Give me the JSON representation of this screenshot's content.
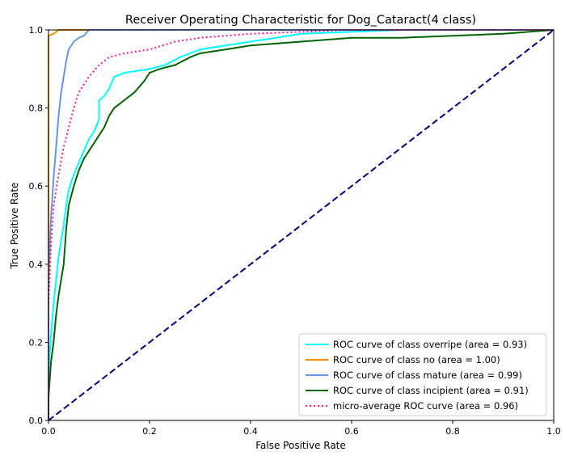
{
  "chart_data": {
    "type": "line",
    "title": "Receiver Operating Characteristic for Dog_Cataract(4 class)",
    "xlabel": "False Positive Rate",
    "ylabel": "True Positive Rate",
    "xlim": [
      0.0,
      1.0
    ],
    "ylim": [
      0.0,
      1.0
    ],
    "xticks": [
      "0.0",
      "0.2",
      "0.4",
      "0.6",
      "0.8",
      "1.0"
    ],
    "yticks": [
      "0.0",
      "0.2",
      "0.4",
      "0.6",
      "0.8",
      "1.0"
    ],
    "grid": false,
    "legend_position": "lower-right",
    "series": [
      {
        "name": "ROC curve of class overripe (area = 0.93)",
        "color": "#00ffff",
        "style": "solid",
        "points": [
          [
            0.0,
            0.0
          ],
          [
            0.0,
            0.12
          ],
          [
            0.005,
            0.22
          ],
          [
            0.01,
            0.3
          ],
          [
            0.015,
            0.36
          ],
          [
            0.02,
            0.42
          ],
          [
            0.025,
            0.46
          ],
          [
            0.03,
            0.5
          ],
          [
            0.035,
            0.55
          ],
          [
            0.04,
            0.59
          ],
          [
            0.05,
            0.63
          ],
          [
            0.06,
            0.66
          ],
          [
            0.07,
            0.69
          ],
          [
            0.08,
            0.72
          ],
          [
            0.09,
            0.74
          ],
          [
            0.1,
            0.77
          ],
          [
            0.1,
            0.82
          ],
          [
            0.11,
            0.83
          ],
          [
            0.12,
            0.85
          ],
          [
            0.13,
            0.88
          ],
          [
            0.15,
            0.89
          ],
          [
            0.2,
            0.9
          ],
          [
            0.23,
            0.91
          ],
          [
            0.26,
            0.93
          ],
          [
            0.3,
            0.95
          ],
          [
            0.35,
            0.96
          ],
          [
            0.4,
            0.97
          ],
          [
            0.45,
            0.98
          ],
          [
            0.5,
            0.99
          ],
          [
            0.6,
            0.995
          ],
          [
            0.7,
            1.0
          ],
          [
            1.0,
            1.0
          ]
        ]
      },
      {
        "name": "ROC curve of class no (area = 1.00)",
        "color": "#ff8c00",
        "style": "solid",
        "points": [
          [
            0.0,
            0.0
          ],
          [
            0.0,
            0.985
          ],
          [
            0.01,
            0.99
          ],
          [
            0.02,
            1.0
          ],
          [
            1.0,
            1.0
          ]
        ]
      },
      {
        "name": "ROC curve of class mature (area = 0.99)",
        "color": "#6495ed",
        "style": "solid",
        "points": [
          [
            0.0,
            0.0
          ],
          [
            0.0,
            0.35
          ],
          [
            0.005,
            0.52
          ],
          [
            0.01,
            0.62
          ],
          [
            0.015,
            0.7
          ],
          [
            0.02,
            0.78
          ],
          [
            0.025,
            0.84
          ],
          [
            0.03,
            0.88
          ],
          [
            0.035,
            0.92
          ],
          [
            0.04,
            0.95
          ],
          [
            0.05,
            0.97
          ],
          [
            0.06,
            0.98
          ],
          [
            0.07,
            0.985
          ],
          [
            0.08,
            1.0
          ],
          [
            0.13,
            1.0
          ],
          [
            1.0,
            1.0
          ]
        ]
      },
      {
        "name": "ROC curve of class incipient (area = 0.91)",
        "color": "#006400",
        "style": "solid",
        "points": [
          [
            0.0,
            0.0
          ],
          [
            0.0,
            0.06
          ],
          [
            0.005,
            0.15
          ],
          [
            0.01,
            0.2
          ],
          [
            0.015,
            0.27
          ],
          [
            0.02,
            0.32
          ],
          [
            0.025,
            0.36
          ],
          [
            0.03,
            0.4
          ],
          [
            0.035,
            0.49
          ],
          [
            0.04,
            0.55
          ],
          [
            0.05,
            0.6
          ],
          [
            0.06,
            0.64
          ],
          [
            0.07,
            0.67
          ],
          [
            0.08,
            0.69
          ],
          [
            0.09,
            0.71
          ],
          [
            0.1,
            0.73
          ],
          [
            0.11,
            0.75
          ],
          [
            0.12,
            0.78
          ],
          [
            0.13,
            0.8
          ],
          [
            0.15,
            0.82
          ],
          [
            0.17,
            0.84
          ],
          [
            0.19,
            0.87
          ],
          [
            0.2,
            0.89
          ],
          [
            0.22,
            0.9
          ],
          [
            0.25,
            0.91
          ],
          [
            0.28,
            0.93
          ],
          [
            0.3,
            0.94
          ],
          [
            0.35,
            0.95
          ],
          [
            0.4,
            0.96
          ],
          [
            0.5,
            0.97
          ],
          [
            0.6,
            0.98
          ],
          [
            0.7,
            0.98
          ],
          [
            0.8,
            0.985
          ],
          [
            0.9,
            0.99
          ],
          [
            0.95,
            0.995
          ],
          [
            1.0,
            1.0
          ]
        ]
      },
      {
        "name": "micro-average ROC curve (area = 0.96)",
        "color": "#ff1493",
        "style": "dotted",
        "points": [
          [
            0.0,
            0.0
          ],
          [
            0.0,
            0.3
          ],
          [
            0.005,
            0.45
          ],
          [
            0.01,
            0.55
          ],
          [
            0.02,
            0.63
          ],
          [
            0.03,
            0.7
          ],
          [
            0.04,
            0.75
          ],
          [
            0.05,
            0.8
          ],
          [
            0.06,
            0.84
          ],
          [
            0.08,
            0.88
          ],
          [
            0.1,
            0.91
          ],
          [
            0.12,
            0.93
          ],
          [
            0.15,
            0.94
          ],
          [
            0.2,
            0.95
          ],
          [
            0.25,
            0.97
          ],
          [
            0.3,
            0.98
          ],
          [
            0.4,
            0.99
          ],
          [
            0.5,
            0.995
          ],
          [
            0.6,
            1.0
          ],
          [
            1.0,
            1.0
          ]
        ]
      },
      {
        "name": "",
        "color": "#000080",
        "style": "dashed",
        "points": [
          [
            0.0,
            0.0
          ],
          [
            1.0,
            1.0
          ]
        ]
      }
    ]
  }
}
